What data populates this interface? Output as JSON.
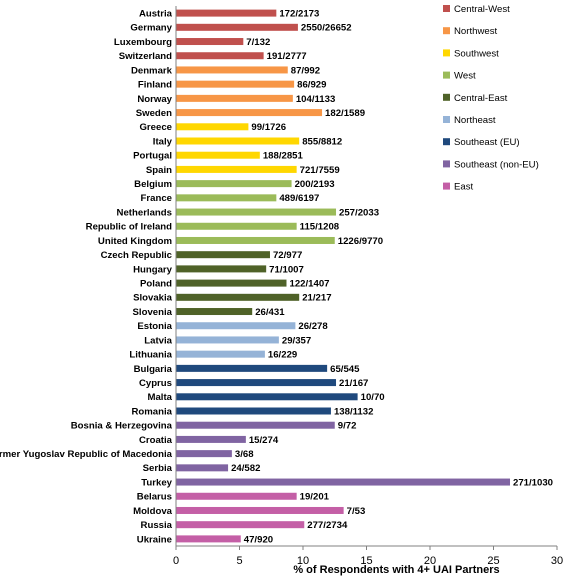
{
  "chart_data": {
    "type": "bar",
    "orientation": "horizontal",
    "xlabel": "% of Respondents with 4+ UAI Partners",
    "xlim": [
      0,
      30
    ],
    "xticks": [
      "0",
      "5",
      "10",
      "15",
      "20",
      "25",
      "30"
    ],
    "grid": false,
    "legend_position": "right",
    "groups": [
      {
        "name": "Central-West",
        "color": "#c0504d"
      },
      {
        "name": "Northwest",
        "color": "#f79646"
      },
      {
        "name": "Southwest",
        "color": "#ffd700"
      },
      {
        "name": "West",
        "color": "#9bbb59"
      },
      {
        "name": "Central-East",
        "color": "#4f6228"
      },
      {
        "name": "Northeast",
        "color": "#95b3d7"
      },
      {
        "name": "Southeast (EU)",
        "color": "#1f497d"
      },
      {
        "name": "Southeast (non-EU)",
        "color": "#8064a2"
      },
      {
        "name": "East",
        "color": "#c45fa6"
      }
    ],
    "bars": [
      {
        "category": "Austria",
        "value": 7.9,
        "label": "172/2173",
        "group": 0
      },
      {
        "category": "Germany",
        "value": 9.6,
        "label": "2550/26652",
        "group": 0
      },
      {
        "category": "Luxembourg",
        "value": 5.3,
        "label": "7/132",
        "group": 0
      },
      {
        "category": "Switzerland",
        "value": 6.9,
        "label": "191/2777",
        "group": 0
      },
      {
        "category": "Denmark",
        "value": 8.8,
        "label": "87/992",
        "group": 1
      },
      {
        "category": "Finland",
        "value": 9.3,
        "label": "86/929",
        "group": 1
      },
      {
        "category": "Norway",
        "value": 9.2,
        "label": "104/1133",
        "group": 1
      },
      {
        "category": "Sweden",
        "value": 11.5,
        "label": "182/1589",
        "group": 1
      },
      {
        "category": "Greece",
        "value": 5.7,
        "label": "99/1726",
        "group": 2
      },
      {
        "category": "Italy",
        "value": 9.7,
        "label": "855/8812",
        "group": 2
      },
      {
        "category": "Portugal",
        "value": 6.6,
        "label": "188/2851",
        "group": 2
      },
      {
        "category": "Spain",
        "value": 9.5,
        "label": "721/7559",
        "group": 2
      },
      {
        "category": "Belgium",
        "value": 9.1,
        "label": "200/2193",
        "group": 3
      },
      {
        "category": "France",
        "value": 7.9,
        "label": "489/6197",
        "group": 3
      },
      {
        "category": "Netherlands",
        "value": 12.6,
        "label": "257/2033",
        "group": 3
      },
      {
        "category": "Republic of Ireland",
        "value": 9.5,
        "label": "115/1208",
        "group": 3
      },
      {
        "category": "United Kingdom",
        "value": 12.5,
        "label": "1226/9770",
        "group": 3
      },
      {
        "category": "Czech Republic",
        "value": 7.4,
        "label": "72/977",
        "group": 4
      },
      {
        "category": "Hungary",
        "value": 7.1,
        "label": "71/1007",
        "group": 4
      },
      {
        "category": "Poland",
        "value": 8.7,
        "label": "122/1407",
        "group": 4
      },
      {
        "category": "Slovakia",
        "value": 9.7,
        "label": "21/217",
        "group": 4
      },
      {
        "category": "Slovenia",
        "value": 6.0,
        "label": "26/431",
        "group": 4
      },
      {
        "category": "Estonia",
        "value": 9.4,
        "label": "26/278",
        "group": 5
      },
      {
        "category": "Latvia",
        "value": 8.1,
        "label": "29/357",
        "group": 5
      },
      {
        "category": "Lithuania",
        "value": 7.0,
        "label": "16/229",
        "group": 5
      },
      {
        "category": "Bulgaria",
        "value": 11.9,
        "label": "65/545",
        "group": 6
      },
      {
        "category": "Cyprus",
        "value": 12.6,
        "label": "21/167",
        "group": 6
      },
      {
        "category": "Malta",
        "value": 14.3,
        "label": "10/70",
        "group": 6
      },
      {
        "category": "Romania",
        "value": 12.2,
        "label": "138/1132",
        "group": 6
      },
      {
        "category": "Bosnia & Herzegovina",
        "value": 12.5,
        "label": "9/72",
        "group": 7
      },
      {
        "category": "Croatia",
        "value": 5.5,
        "label": "15/274",
        "group": 7
      },
      {
        "category": "Former Yugoslav Republic of Macedonia",
        "value": 4.4,
        "label": "3/68",
        "group": 7
      },
      {
        "category": "Serbia",
        "value": 4.1,
        "label": "24/582",
        "group": 7
      },
      {
        "category": "Turkey",
        "value": 26.3,
        "label": "271/1030",
        "group": 7
      },
      {
        "category": "Belarus",
        "value": 9.5,
        "label": "19/201",
        "group": 8
      },
      {
        "category": "Moldova",
        "value": 13.2,
        "label": "7/53",
        "group": 8
      },
      {
        "category": "Russia",
        "value": 10.1,
        "label": "277/2734",
        "group": 8
      },
      {
        "category": "Ukraine",
        "value": 5.1,
        "label": "47/920",
        "group": 8
      }
    ]
  }
}
